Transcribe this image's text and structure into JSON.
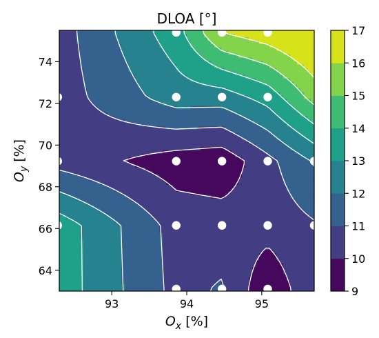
{
  "chart_data": {
    "type": "contour",
    "title": "DLOA  [°]",
    "xlabel": {
      "main": "O",
      "sub": "x",
      "unit": " [%]"
    },
    "ylabel": {
      "main": "O",
      "sub": "y",
      "unit": " [%]"
    },
    "xlim": [
      92.3,
      95.7
    ],
    "ylim": [
      63.0,
      75.5
    ],
    "x_ticks": [
      93,
      94,
      95
    ],
    "y_ticks": [
      64,
      66,
      68,
      70,
      72,
      74
    ],
    "x_tick_labels": [
      "93",
      "94",
      "95"
    ],
    "y_tick_labels": [
      "64",
      "66",
      "68",
      "70",
      "72",
      "74"
    ],
    "colorbar": {
      "levels": [
        9,
        10,
        11,
        12,
        13,
        14,
        15,
        16,
        17
      ],
      "tick_labels": [
        "9",
        "10",
        "11",
        "12",
        "13",
        "14",
        "15",
        "16",
        "17"
      ],
      "colors": [
        "#46085c",
        "#433d84",
        "#34618d",
        "#26828e",
        "#1fa088",
        "#3fbc73",
        "#84d44b",
        "#d8e219"
      ]
    },
    "grid_x": [
      92.28,
      93.86,
      94.47,
      95.08,
      95.7
    ],
    "grid_y": [
      63.1,
      66.15,
      69.23,
      72.3,
      75.4
    ],
    "z": [
      [
        13.6,
        10.7,
        11.1,
        9.2,
        10.8
      ],
      [
        13.6,
        10.6,
        10.5,
        10.4,
        10.9
      ],
      [
        10.6,
        9.5,
        9.3,
        10.7,
        12.1
      ],
      [
        10.5,
        12.5,
        12.5,
        13.4,
        15.4
      ],
      [
        10.5,
        13.6,
        16.0,
        16.6,
        17.4
      ]
    ],
    "sample_points": [
      {
        "x": 92.28,
        "y": 72.3
      },
      {
        "x": 92.28,
        "y": 69.23
      },
      {
        "x": 92.28,
        "y": 66.15
      },
      {
        "x": 93.86,
        "y": 75.4
      },
      {
        "x": 93.86,
        "y": 72.3
      },
      {
        "x": 93.86,
        "y": 69.23
      },
      {
        "x": 93.86,
        "y": 66.15
      },
      {
        "x": 93.86,
        "y": 63.1
      },
      {
        "x": 94.47,
        "y": 75.4
      },
      {
        "x": 94.47,
        "y": 72.3
      },
      {
        "x": 94.47,
        "y": 69.23
      },
      {
        "x": 94.47,
        "y": 66.15
      },
      {
        "x": 94.47,
        "y": 63.1
      },
      {
        "x": 95.08,
        "y": 75.4
      },
      {
        "x": 95.08,
        "y": 72.3
      },
      {
        "x": 95.08,
        "y": 69.23
      },
      {
        "x": 95.08,
        "y": 66.15
      },
      {
        "x": 95.08,
        "y": 63.1
      },
      {
        "x": 95.7,
        "y": 69.23
      },
      {
        "x": 95.7,
        "y": 66.15
      }
    ]
  }
}
